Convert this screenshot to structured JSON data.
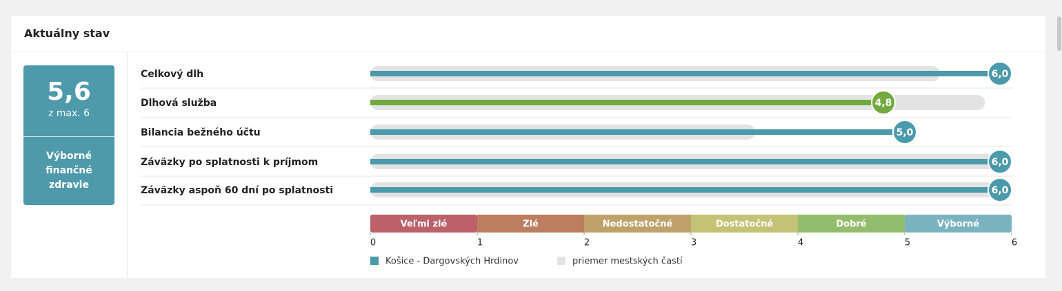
{
  "header": {
    "title": "Aktuálny stav"
  },
  "score": {
    "value": "5,6",
    "max_label": "z max. 6",
    "rating": "Výborné finančné zdravie"
  },
  "chart_data": {
    "type": "bar",
    "orientation": "horizontal",
    "categories": [
      "Celkový dlh",
      "Dlhová služba",
      "Bilancia bežného účtu",
      "Záväzky po splatnosti k príjmom",
      "Záväzky aspoň 60 dní po splatnosti"
    ],
    "series": [
      {
        "name": "Košice - Dargovských Hrdinov",
        "color": "#4a9aab",
        "colors": [
          "#4a9aab",
          "#72aa3f",
          "#4a9aab",
          "#4a9aab",
          "#4a9aab"
        ],
        "values": [
          6.0,
          4.8,
          5.0,
          6.0,
          6.0
        ],
        "value_labels": [
          "6,0",
          "4,8",
          "5,0",
          "6,0",
          "6,0"
        ]
      },
      {
        "name": "priemer mestských častí",
        "color": "#e3e3e3",
        "values": [
          5.33,
          5.75,
          3.6,
          6.0,
          6.0
        ]
      }
    ],
    "xlim": [
      0,
      6
    ],
    "xticks": [
      0,
      1,
      2,
      3,
      4,
      5,
      6
    ],
    "bands": [
      {
        "label": "Veľmi zlé",
        "color": "#bc6069"
      },
      {
        "label": "Zlé",
        "color": "#bd7e5f"
      },
      {
        "label": "Nedostatočné",
        "color": "#bfa26a"
      },
      {
        "label": "Dostatočné",
        "color": "#c4c274"
      },
      {
        "label": "Dobré",
        "color": "#93bd6c"
      },
      {
        "label": "Výborné",
        "color": "#7ab3c0"
      }
    ]
  }
}
